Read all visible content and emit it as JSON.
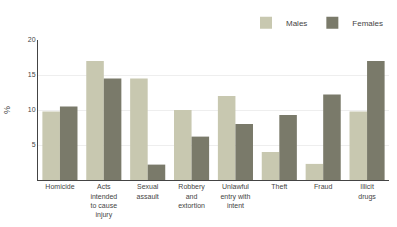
{
  "chart_data": {
    "type": "bar",
    "categories": [
      "Homicide",
      "Acts\nintended\nto cause\ninjury",
      "Sexual\nassault",
      "Robbery\nand\nextortion",
      "Unlawful\nentry with\nintent",
      "Theft",
      "Fraud",
      "Illicit\ndrugs"
    ],
    "series": [
      {
        "name": "Males",
        "color": "#c8c8b0",
        "values": [
          9.8,
          17.0,
          14.5,
          10.0,
          12.0,
          4.0,
          2.3,
          9.8
        ]
      },
      {
        "name": "Females",
        "color": "#7a7a6a",
        "values": [
          10.5,
          14.5,
          2.2,
          6.2,
          8.0,
          9.3,
          12.2,
          17.0
        ]
      }
    ],
    "ylabel": "%",
    "ylim": [
      0,
      20
    ],
    "yticks": [
      5,
      10,
      15,
      20
    ],
    "grid": true,
    "legend": "upper right"
  }
}
